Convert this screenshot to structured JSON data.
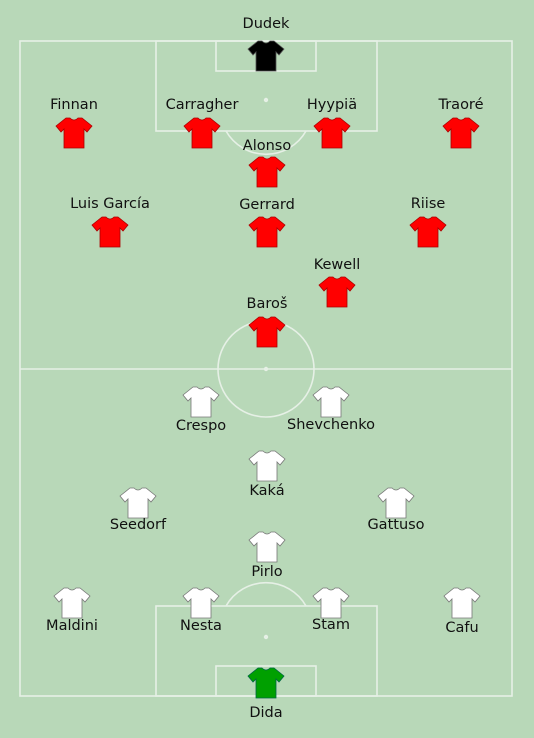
{
  "colors": {
    "pitch": "#b8d8b8",
    "lines": "#e6f0e6",
    "home_kit": "#ff0000",
    "home_keeper_kit": "#000000",
    "away_kit": "#ffffff",
    "away_keeper_kit": "#00a000"
  },
  "home": {
    "players": [
      {
        "name": "Dudek",
        "icon": "shirt-icon",
        "kit": "black"
      },
      {
        "name": "Finnan",
        "icon": "shirt-icon",
        "kit": "red"
      },
      {
        "name": "Carragher",
        "icon": "shirt-icon",
        "kit": "red"
      },
      {
        "name": "Hyypiä",
        "icon": "shirt-icon",
        "kit": "red"
      },
      {
        "name": "Traoré",
        "icon": "shirt-icon",
        "kit": "red"
      },
      {
        "name": "Alonso",
        "icon": "shirt-icon",
        "kit": "red"
      },
      {
        "name": "Luis García",
        "icon": "shirt-icon",
        "kit": "red"
      },
      {
        "name": "Gerrard",
        "icon": "shirt-icon",
        "kit": "red"
      },
      {
        "name": "Riise",
        "icon": "shirt-icon",
        "kit": "red"
      },
      {
        "name": "Kewell",
        "icon": "shirt-icon",
        "kit": "red"
      },
      {
        "name": "Baroš",
        "icon": "shirt-icon",
        "kit": "red"
      }
    ]
  },
  "away": {
    "players": [
      {
        "name": "Crespo",
        "icon": "shirt-icon",
        "kit": "white"
      },
      {
        "name": "Shevchenko",
        "icon": "shirt-icon",
        "kit": "white"
      },
      {
        "name": "Kaká",
        "icon": "shirt-icon",
        "kit": "white"
      },
      {
        "name": "Seedorf",
        "icon": "shirt-icon",
        "kit": "white"
      },
      {
        "name": "Gattuso",
        "icon": "shirt-icon",
        "kit": "white"
      },
      {
        "name": "Pirlo",
        "icon": "shirt-icon",
        "kit": "white"
      },
      {
        "name": "Maldini",
        "icon": "shirt-icon",
        "kit": "white"
      },
      {
        "name": "Nesta",
        "icon": "shirt-icon",
        "kit": "white"
      },
      {
        "name": "Stam",
        "icon": "shirt-icon",
        "kit": "white"
      },
      {
        "name": "Cafu",
        "icon": "shirt-icon",
        "kit": "white"
      },
      {
        "name": "Dida",
        "icon": "shirt-icon",
        "kit": "green"
      }
    ]
  }
}
